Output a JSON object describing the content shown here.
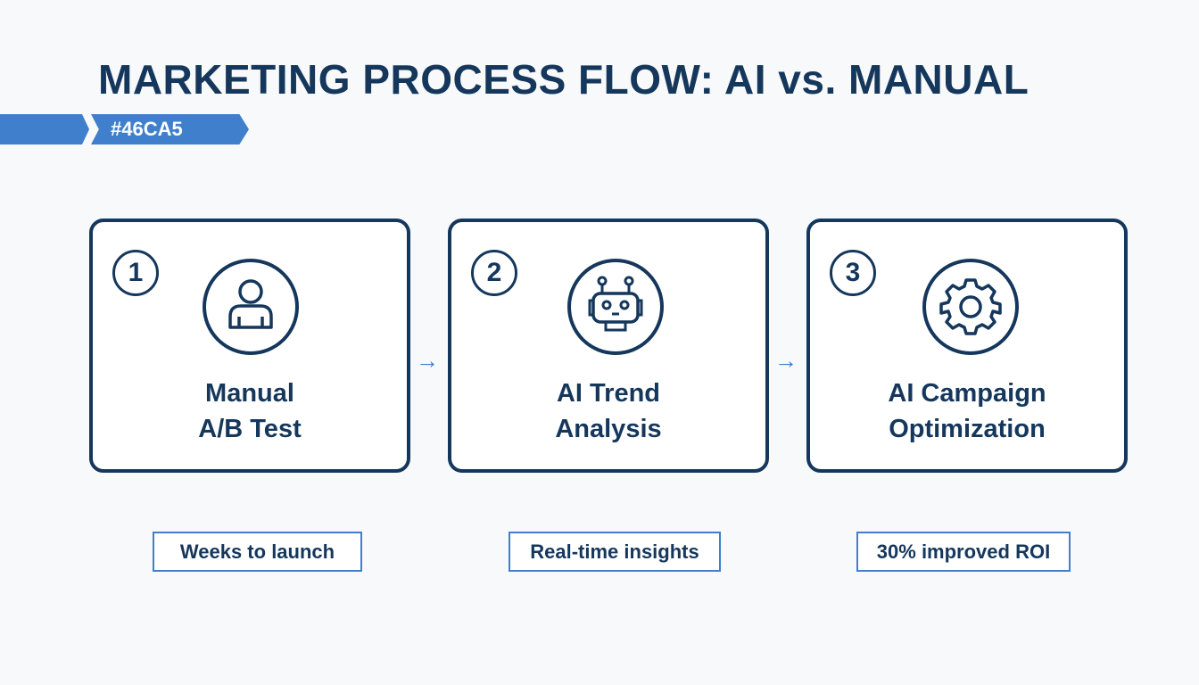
{
  "title": "MARKETING PROCESS FLOW: AI vs. MANUAL",
  "banner_label": "#46CA5",
  "colors": {
    "navy": "#15375c",
    "accent": "#3f7fcc"
  },
  "steps": [
    {
      "number": "1",
      "icon": "person-icon",
      "line1": "Manual",
      "line2": "A/B Test",
      "note": "Weeks to launch"
    },
    {
      "number": "2",
      "icon": "robot-icon",
      "line1": "AI Trend",
      "line2": "Analysis",
      "note": "Real-time insights"
    },
    {
      "number": "3",
      "icon": "gear-icon",
      "line1": "AI Campaign",
      "line2": "Optimization",
      "note": "30% improved ROI"
    }
  ],
  "arrow_glyph": "→"
}
